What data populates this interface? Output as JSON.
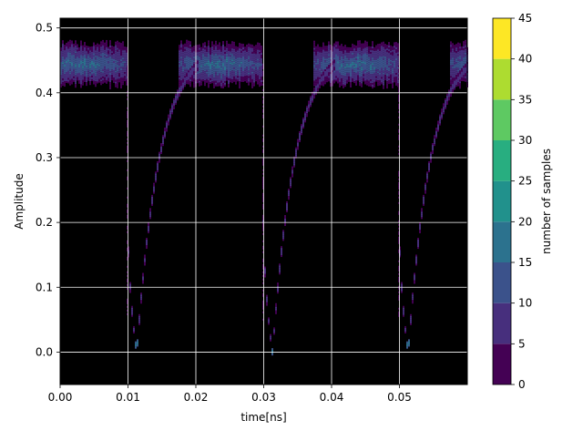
{
  "chart_data": {
    "type": "heatmap",
    "title": "",
    "xlabel": "time[ns]",
    "ylabel": "Amplitude",
    "xlim": [
      0.0,
      0.06
    ],
    "ylim": [
      -0.05,
      0.515
    ],
    "xticks": [
      0.0,
      0.01,
      0.02,
      0.03,
      0.04,
      0.05
    ],
    "xtick_labels": [
      "0.00",
      "0.01",
      "0.02",
      "0.03",
      "0.04",
      "0.05"
    ],
    "yticks": [
      0.0,
      0.1,
      0.2,
      0.3,
      0.4,
      0.5
    ],
    "ytick_labels": [
      "0.0",
      "0.1",
      "0.2",
      "0.3",
      "0.4",
      "0.5"
    ],
    "grid": true,
    "background_color": "#000000",
    "grid_color": "#ffffff",
    "colorbar": {
      "label": "number of samples",
      "levels": [
        0,
        5,
        10,
        15,
        20,
        25,
        30,
        35,
        40,
        45
      ],
      "tick_labels": [
        "0",
        "5",
        "10",
        "15",
        "20",
        "25",
        "30",
        "35",
        "40",
        "45"
      ],
      "colors": [
        "#440154",
        "#472f7d",
        "#3b528b",
        "#2c728e",
        "#21918c",
        "#28ae80",
        "#5ec962",
        "#addc30",
        "#fde725"
      ]
    },
    "pulses": [
      {
        "drop_time": 0.0098,
        "min_time": 0.0113,
        "min_amplitude": 0.0,
        "recover_time": 0.0205,
        "baseline": 0.445
      },
      {
        "drop_time": 0.0298,
        "min_time": 0.0313,
        "min_amplitude": 0.0,
        "recover_time": 0.0405,
        "baseline": 0.445
      },
      {
        "drop_time": 0.0498,
        "min_time": 0.0513,
        "min_amplitude": 0.0,
        "recover_time": 0.0605,
        "baseline": 0.445
      }
    ],
    "baseline_band": [
      0.42,
      0.47
    ]
  }
}
